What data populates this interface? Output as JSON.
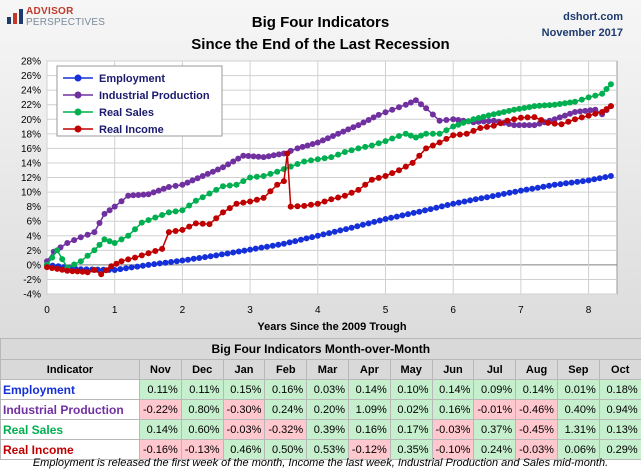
{
  "logo": {
    "line1": "ADVISOR",
    "line2": "PERSPECTIVES"
  },
  "title": {
    "line1": "Big Four Indicators",
    "line2": "Since the End of the Last Recession"
  },
  "source": {
    "site": "dshort.com",
    "date": "November 2017"
  },
  "chart_data": {
    "type": "line",
    "xlabel": "Years Since the 2009 Trough",
    "ylabel": "",
    "x_ticks": [
      "0",
      "1",
      "2",
      "3",
      "4",
      "5",
      "6",
      "7",
      "8"
    ],
    "y_ticks": [
      "28%",
      "26%",
      "24%",
      "22%",
      "20%",
      "18%",
      "16%",
      "14%",
      "12%",
      "10%",
      "8%",
      "6%",
      "4%",
      "2%",
      "0%",
      "-2%",
      "-4%"
    ],
    "xlim": [
      0,
      8.42
    ],
    "ylim": [
      -4,
      28
    ],
    "legend_position": "top-left",
    "series": [
      {
        "name": "Employment",
        "color": "#1530d8",
        "points": [
          [
            0,
            0
          ],
          [
            0.5,
            -0.6
          ],
          [
            1,
            -0.7
          ],
          [
            1.5,
            0
          ],
          [
            2,
            0.6
          ],
          [
            2.5,
            1.3
          ],
          [
            3,
            2.1
          ],
          [
            3.5,
            2.9
          ],
          [
            4,
            4
          ],
          [
            4.5,
            5.1
          ],
          [
            5,
            6.3
          ],
          [
            5.5,
            7.3
          ],
          [
            6,
            8.4
          ],
          [
            6.5,
            9.3
          ],
          [
            7,
            10.2
          ],
          [
            7.5,
            11
          ],
          [
            8,
            11.6
          ],
          [
            8.33,
            12.2
          ]
        ]
      },
      {
        "name": "Industrial Production",
        "color": "#7030a0",
        "points": [
          [
            0,
            0.5
          ],
          [
            0.1,
            1.8
          ],
          [
            0.3,
            3
          ],
          [
            0.5,
            3.8
          ],
          [
            0.7,
            4.5
          ],
          [
            0.85,
            7
          ],
          [
            1,
            8
          ],
          [
            1.2,
            9.5
          ],
          [
            1.5,
            9.7
          ],
          [
            1.8,
            10.7
          ],
          [
            2,
            11
          ],
          [
            2.3,
            12.2
          ],
          [
            2.6,
            13.4
          ],
          [
            2.9,
            15
          ],
          [
            3.2,
            14.8
          ],
          [
            3.5,
            15.3
          ],
          [
            3.7,
            16
          ],
          [
            4,
            16.8
          ],
          [
            4.3,
            18
          ],
          [
            4.6,
            19.2
          ],
          [
            4.9,
            20.6
          ],
          [
            5.1,
            21.3
          ],
          [
            5.3,
            22
          ],
          [
            5.45,
            22.6
          ],
          [
            5.6,
            21.5
          ],
          [
            5.8,
            19.8
          ],
          [
            6,
            20
          ],
          [
            6.3,
            19.6
          ],
          [
            6.6,
            19.8
          ],
          [
            6.9,
            19.2
          ],
          [
            7.2,
            19.2
          ],
          [
            7.5,
            20
          ],
          [
            7.8,
            21
          ],
          [
            8.1,
            21.3
          ],
          [
            8.2,
            20.7
          ],
          [
            8.33,
            21.8
          ]
        ]
      },
      {
        "name": "Real Sales",
        "color": "#00b050",
        "points": [
          [
            0,
            0
          ],
          [
            0.15,
            2
          ],
          [
            0.3,
            -0.4
          ],
          [
            0.5,
            0.5
          ],
          [
            0.7,
            2
          ],
          [
            0.85,
            3.5
          ],
          [
            1,
            3
          ],
          [
            1.2,
            4
          ],
          [
            1.4,
            5.8
          ],
          [
            1.6,
            6.5
          ],
          [
            1.8,
            7.2
          ],
          [
            2,
            7.5
          ],
          [
            2.2,
            8.8
          ],
          [
            2.4,
            9.8
          ],
          [
            2.6,
            10.8
          ],
          [
            2.8,
            11
          ],
          [
            3,
            12
          ],
          [
            3.2,
            12.2
          ],
          [
            3.4,
            12.8
          ],
          [
            3.6,
            13.5
          ],
          [
            3.8,
            14.2
          ],
          [
            4,
            14.5
          ],
          [
            4.2,
            14.8
          ],
          [
            4.4,
            15.5
          ],
          [
            4.6,
            16
          ],
          [
            4.8,
            16.4
          ],
          [
            5,
            17
          ],
          [
            5.2,
            17.7
          ],
          [
            5.3,
            18
          ],
          [
            5.45,
            17.5
          ],
          [
            5.6,
            18
          ],
          [
            5.8,
            18
          ],
          [
            6,
            19
          ],
          [
            6.3,
            20
          ],
          [
            6.6,
            20.7
          ],
          [
            6.9,
            21.3
          ],
          [
            7.2,
            21.8
          ],
          [
            7.5,
            22
          ],
          [
            7.8,
            22.4
          ],
          [
            8,
            23
          ],
          [
            8.2,
            23.5
          ],
          [
            8.33,
            24.8
          ]
        ]
      },
      {
        "name": "Real Income",
        "color": "#c00000",
        "points": [
          [
            0,
            -0.3
          ],
          [
            0.3,
            -0.8
          ],
          [
            0.6,
            -1
          ],
          [
            0.7,
            -0.7
          ],
          [
            0.8,
            -1.3
          ],
          [
            0.95,
            -0.2
          ],
          [
            1.1,
            0.5
          ],
          [
            1.3,
            1
          ],
          [
            1.5,
            1.6
          ],
          [
            1.7,
            2.2
          ],
          [
            1.8,
            4.5
          ],
          [
            2,
            4.8
          ],
          [
            2.2,
            5.7
          ],
          [
            2.4,
            5.6
          ],
          [
            2.6,
            7.2
          ],
          [
            2.8,
            8.4
          ],
          [
            3,
            8.7
          ],
          [
            3.2,
            9.2
          ],
          [
            3.4,
            11
          ],
          [
            3.5,
            11.5
          ],
          [
            3.55,
            15.3
          ],
          [
            3.6,
            8
          ],
          [
            3.8,
            8.1
          ],
          [
            4,
            8.4
          ],
          [
            4.2,
            9
          ],
          [
            4.4,
            9.5
          ],
          [
            4.6,
            10.3
          ],
          [
            4.8,
            11.7
          ],
          [
            5,
            12.2
          ],
          [
            5.2,
            13
          ],
          [
            5.4,
            14
          ],
          [
            5.6,
            16
          ],
          [
            5.8,
            16.8
          ],
          [
            6,
            17.8
          ],
          [
            6.2,
            18
          ],
          [
            6.4,
            18.8
          ],
          [
            6.6,
            19.1
          ],
          [
            6.8,
            19.8
          ],
          [
            7,
            20.2
          ],
          [
            7.2,
            20.3
          ],
          [
            7.4,
            19.5
          ],
          [
            7.6,
            19.3
          ],
          [
            7.8,
            20
          ],
          [
            8,
            20.5
          ],
          [
            8.2,
            21
          ],
          [
            8.33,
            21.8
          ]
        ]
      }
    ]
  },
  "table": {
    "title": "Big Four Indicators Month-over-Month",
    "header": [
      "Indicator",
      "Nov",
      "Dec",
      "Jan",
      "Feb",
      "Mar",
      "Apr",
      "May",
      "Jun",
      "Jul",
      "Aug",
      "Sep",
      "Oct"
    ],
    "rows": [
      {
        "name": "Employment",
        "color": "#1530d8",
        "values": [
          "0.11%",
          "0.11%",
          "0.15%",
          "0.16%",
          "0.03%",
          "0.14%",
          "0.10%",
          "0.14%",
          "0.09%",
          "0.14%",
          "0.01%",
          "0.18%"
        ]
      },
      {
        "name": "Industrial Production",
        "color": "#7030a0",
        "values": [
          "-0.22%",
          "0.80%",
          "-0.30%",
          "0.24%",
          "0.20%",
          "1.09%",
          "0.02%",
          "0.16%",
          "-0.01%",
          "-0.46%",
          "0.40%",
          "0.94%"
        ]
      },
      {
        "name": "Real Sales",
        "color": "#00b050",
        "values": [
          "0.14%",
          "0.60%",
          "-0.03%",
          "-0.32%",
          "0.39%",
          "0.16%",
          "0.17%",
          "-0.03%",
          "0.37%",
          "-0.45%",
          "1.31%",
          "0.13%"
        ]
      },
      {
        "name": "Real Income",
        "color": "#c00000",
        "values": [
          "-0.16%",
          "-0.13%",
          "0.46%",
          "0.50%",
          "0.53%",
          "-0.12%",
          "0.35%",
          "-0.10%",
          "0.24%",
          "-0.03%",
          "0.06%",
          "0.29%"
        ]
      }
    ]
  },
  "footnote": "Employment is released the first week of the month, Income the last week, Industrial Production and Sales mid-month."
}
